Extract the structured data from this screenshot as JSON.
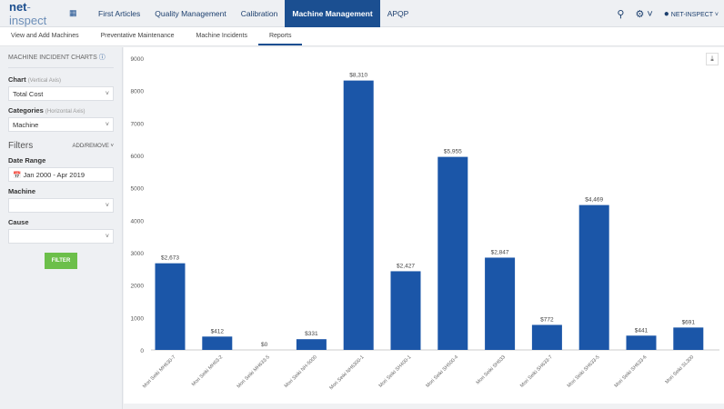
{
  "nav": {
    "logo_main": "net",
    "logo_rest": "-inspect",
    "items": [
      "First Articles",
      "Quality Management",
      "Calibration",
      "Machine Management",
      "APQP"
    ],
    "active": 3,
    "user": "NET-INSPECT"
  },
  "subnav": {
    "items": [
      "View and Add Machines",
      "Preventative Maintenance",
      "Machine Incidents",
      "Reports"
    ],
    "active": 3
  },
  "sidebar": {
    "title": "MACHINE INCIDENT CHARTS",
    "chart_label": "Chart",
    "chart_hint": "(Vertical Axis)",
    "chart_value": "Total Cost",
    "cat_label": "Categories",
    "cat_hint": "(Horizontal Axis)",
    "cat_value": "Machine",
    "filters": "Filters",
    "add_remove": "ADD/REMOVE",
    "date_label": "Date Range",
    "date_value": "Jan 2000 - Apr 2019",
    "machine_label": "Machine",
    "machine_value": "",
    "cause_label": "Cause",
    "cause_value": "",
    "filter_button": "FILTER"
  },
  "chart_data": {
    "type": "bar",
    "color": "#1b56a8",
    "categories": [
      "Mori Seiki MH630-7",
      "Mori Seiki MH63-2",
      "Mori Seiki MH633-5",
      "Mori Seiki NH-5000",
      "Mori Seiki NH6300-1",
      "Mori Seiki SH400-1",
      "Mori Seiki SH500-4",
      "Mori Seiki SH633",
      "Mori Seiki SH633-7",
      "Mori Seiki SH633-5",
      "Mori Seiki SH633-6",
      "Mori Seiki SL300"
    ],
    "values": [
      2673,
      412,
      0,
      331,
      8310,
      2427,
      5955,
      2847,
      772,
      4469,
      441,
      691
    ],
    "labels": [
      "$2,673",
      "$412",
      "$0",
      "$331",
      "$8,310",
      "$2,427",
      "$5,955",
      "$2,847",
      "$772",
      "$4,469",
      "$441",
      "$691"
    ],
    "ylim": [
      0,
      9000
    ],
    "yticks": [
      "0",
      "1000",
      "2000",
      "3000",
      "4000",
      "5000",
      "6000",
      "7000",
      "8000",
      "9000"
    ],
    "grid": false
  }
}
